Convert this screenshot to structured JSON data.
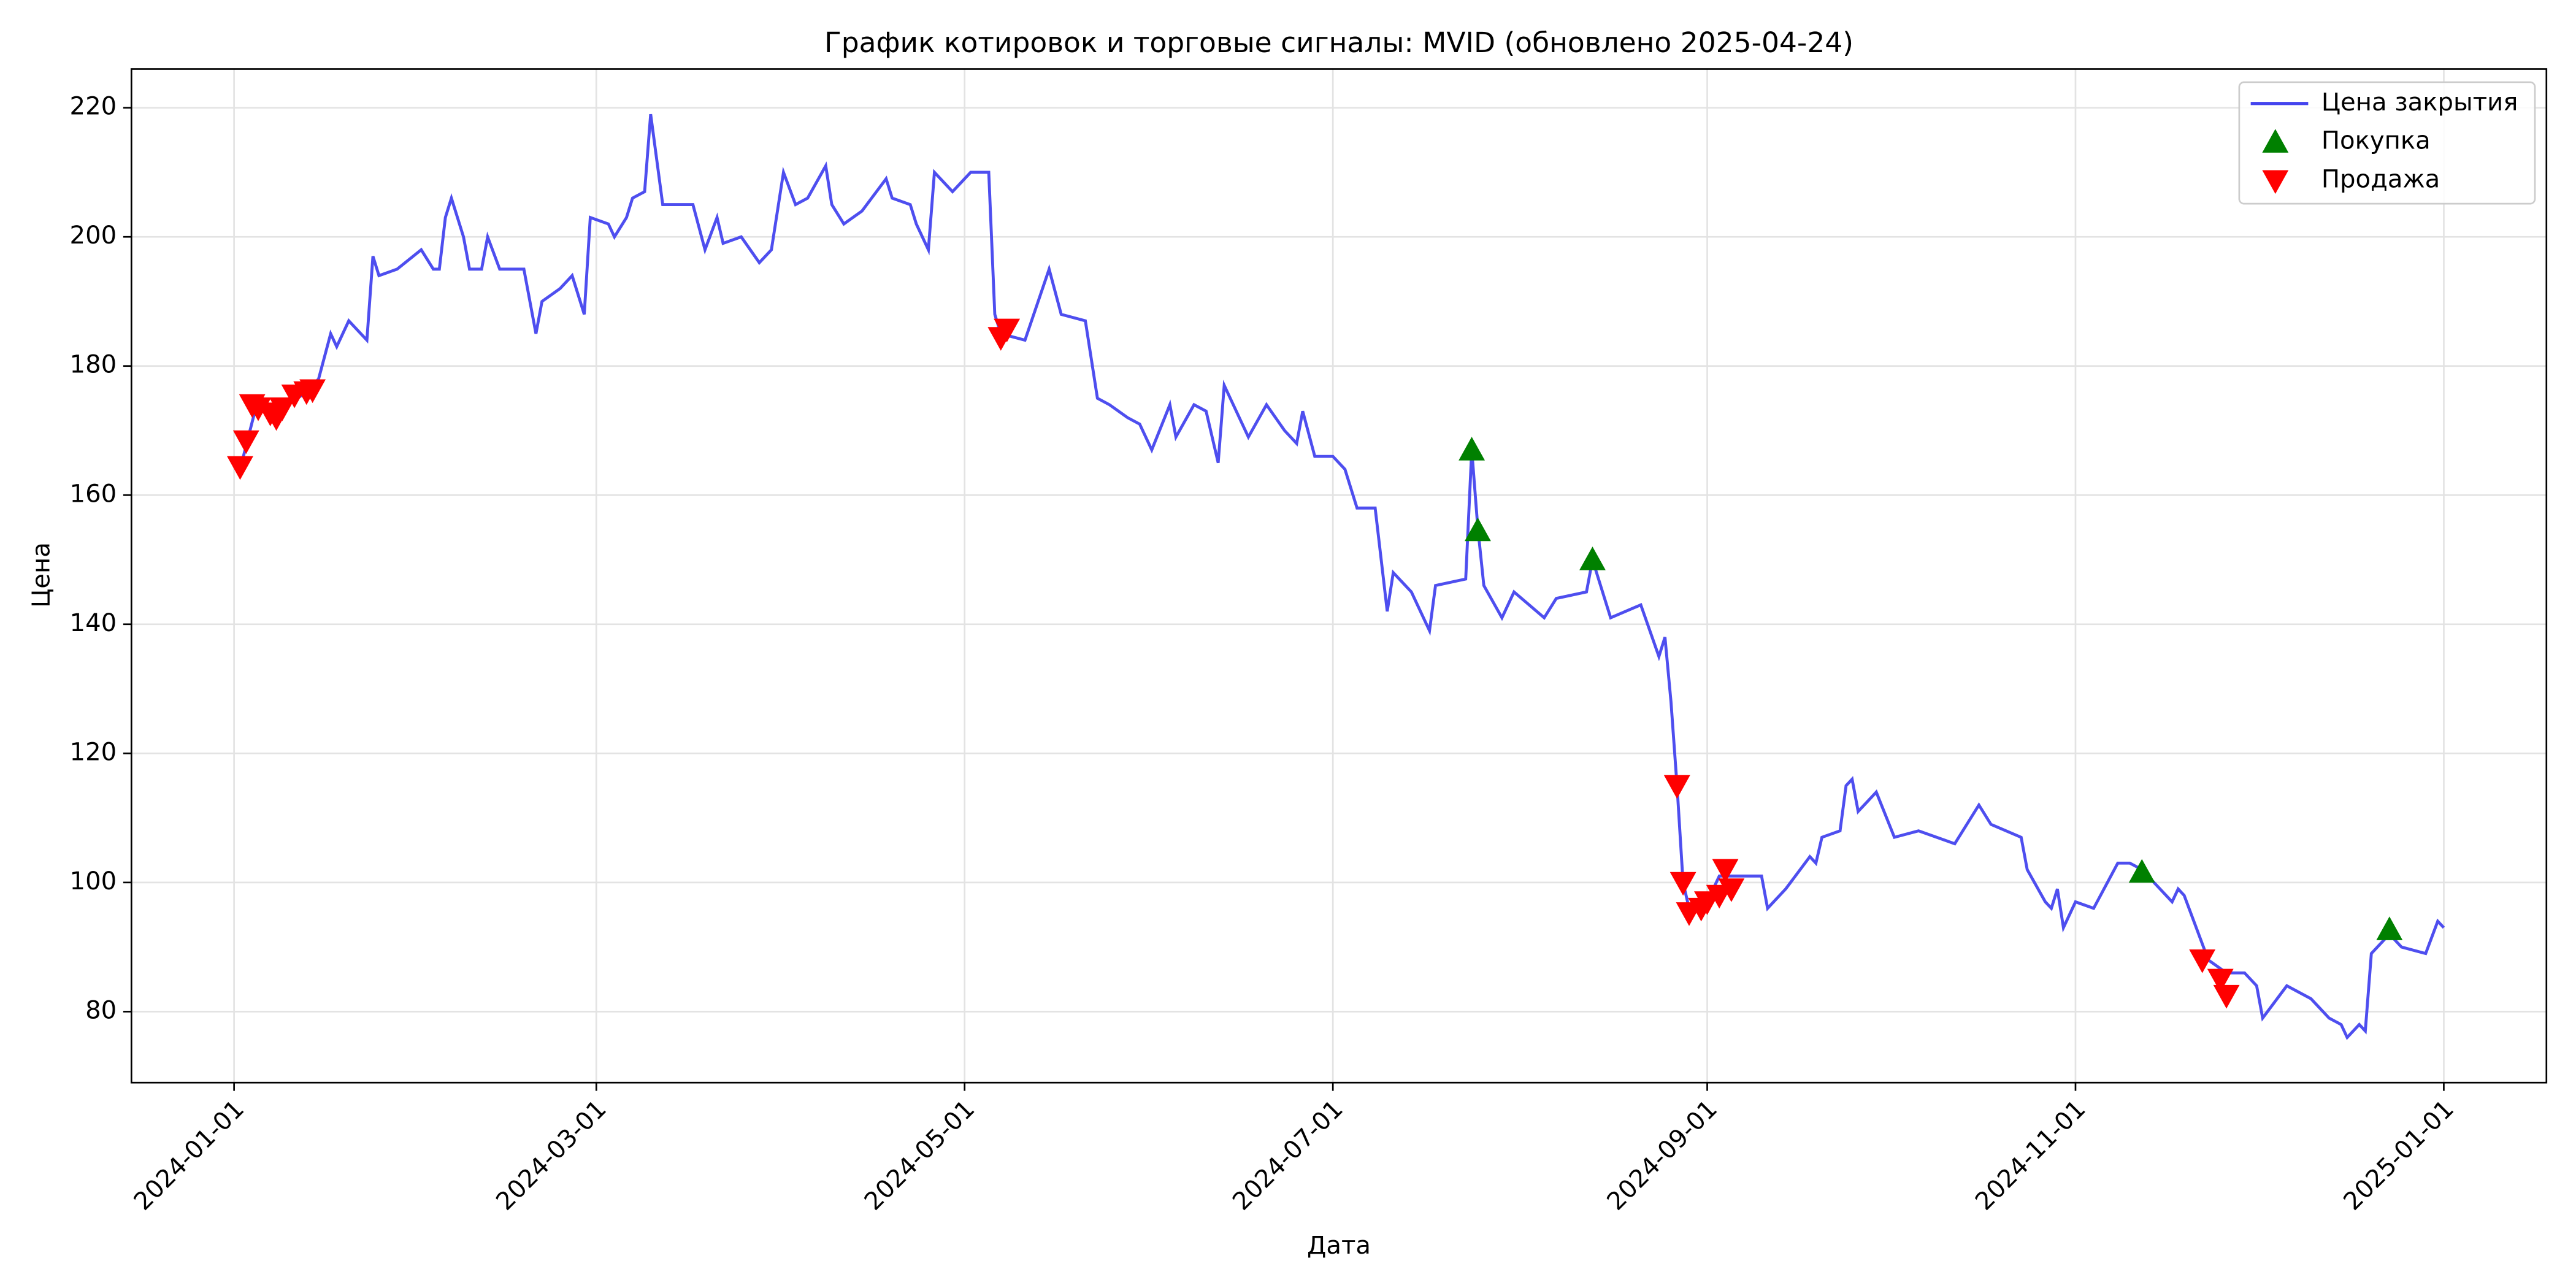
{
  "chart_data": {
    "type": "line",
    "title": "График котировок и торговые сигналы: MVID (обновлено 2025-04-24)",
    "xlabel": "Дата",
    "ylabel": "Цена",
    "xlim": [
      "2023-12-15",
      "2025-01-18"
    ],
    "xticks": [
      "2024-01-01",
      "2024-03-01",
      "2024-05-01",
      "2024-07-01",
      "2024-09-01",
      "2024-11-01",
      "2025-01-01"
    ],
    "ylim": [
      69,
      226
    ],
    "yticks": [
      80,
      100,
      120,
      140,
      160,
      180,
      200,
      220
    ],
    "grid": true,
    "legend": "upper right",
    "series": [
      {
        "name": "Цена закрытия",
        "color": "#4444ee",
        "kind": "line",
        "x": [
          "2024-01-02",
          "2024-01-05",
          "2024-01-07",
          "2024-01-10",
          "2024-01-13",
          "2024-01-15",
          "2024-01-17",
          "2024-01-18",
          "2024-01-20",
          "2024-01-23",
          "2024-01-24",
          "2024-01-25",
          "2024-01-28",
          "2024-02-01",
          "2024-02-03",
          "2024-02-04",
          "2024-02-05",
          "2024-02-06",
          "2024-02-08",
          "2024-02-09",
          "2024-02-11",
          "2024-02-12",
          "2024-02-14",
          "2024-02-18",
          "2024-02-20",
          "2024-02-21",
          "2024-02-24",
          "2024-02-26",
          "2024-02-28",
          "2024-02-29",
          "2024-03-03",
          "2024-03-04",
          "2024-03-06",
          "2024-03-07",
          "2024-03-09",
          "2024-03-10",
          "2024-03-12",
          "2024-03-17",
          "2024-03-19",
          "2024-03-21",
          "2024-03-22",
          "2024-03-25",
          "2024-03-28",
          "2024-03-30",
          "2024-04-01",
          "2024-04-03",
          "2024-04-05",
          "2024-04-08",
          "2024-04-09",
          "2024-04-11",
          "2024-04-14",
          "2024-04-18",
          "2024-04-19",
          "2024-04-22",
          "2024-04-23",
          "2024-04-25",
          "2024-04-26",
          "2024-04-29",
          "2024-05-02",
          "2024-05-05",
          "2024-05-06",
          "2024-05-07",
          "2024-05-11",
          "2024-05-15",
          "2024-05-17",
          "2024-05-21",
          "2024-05-23",
          "2024-05-25",
          "2024-05-28",
          "2024-05-30",
          "2024-06-01",
          "2024-06-04",
          "2024-06-05",
          "2024-06-08",
          "2024-06-10",
          "2024-06-12",
          "2024-06-13",
          "2024-06-17",
          "2024-06-20",
          "2024-06-23",
          "2024-06-25",
          "2024-06-26",
          "2024-06-28",
          "2024-07-01",
          "2024-07-03",
          "2024-07-05",
          "2024-07-08",
          "2024-07-10",
          "2024-07-11",
          "2024-07-14",
          "2024-07-17",
          "2024-07-18",
          "2024-07-23",
          "2024-07-24",
          "2024-07-25",
          "2024-07-26",
          "2024-07-29",
          "2024-07-31",
          "2024-08-05",
          "2024-08-07",
          "2024-08-12",
          "2024-08-13",
          "2024-08-16",
          "2024-08-21",
          "2024-08-24",
          "2024-08-25",
          "2024-08-26",
          "2024-08-27",
          "2024-08-28",
          "2024-08-29",
          "2024-09-01",
          "2024-09-03",
          "2024-09-10",
          "2024-09-11",
          "2024-09-14",
          "2024-09-18",
          "2024-09-19",
          "2024-09-20",
          "2024-09-23",
          "2024-09-24",
          "2024-09-25",
          "2024-09-26",
          "2024-09-29",
          "2024-10-02",
          "2024-10-06",
          "2024-10-12",
          "2024-10-16",
          "2024-10-18",
          "2024-10-23",
          "2024-10-24",
          "2024-10-27",
          "2024-10-28",
          "2024-10-29",
          "2024-10-30",
          "2024-11-01",
          "2024-11-04",
          "2024-11-08",
          "2024-11-10",
          "2024-11-12",
          "2024-11-14",
          "2024-11-17",
          "2024-11-18",
          "2024-11-19",
          "2024-11-23",
          "2024-11-26",
          "2024-11-29",
          "2024-12-01",
          "2024-12-02",
          "2024-12-06",
          "2024-12-10",
          "2024-12-13",
          "2024-12-15",
          "2024-12-16",
          "2024-12-18",
          "2024-12-19",
          "2024-12-20",
          "2024-12-23",
          "2024-12-25",
          "2024-12-29",
          "2024-12-31",
          "2025-01-01"
        ],
        "values": [
          164,
          175,
          172,
          174,
          176,
          178,
          185,
          183,
          187,
          184,
          197,
          194,
          195,
          198,
          195,
          195,
          203,
          206,
          200,
          195,
          195,
          200,
          195,
          195,
          185,
          190,
          192,
          194,
          188,
          203,
          202,
          200,
          203,
          206,
          207,
          219,
          205,
          205,
          198,
          203,
          199,
          200,
          196,
          198,
          210,
          205,
          206,
          211,
          205,
          202,
          204,
          209,
          206,
          205,
          202,
          198,
          210,
          207,
          210,
          210,
          188,
          185,
          184,
          195,
          188,
          187,
          175,
          174,
          172,
          171,
          167,
          174,
          169,
          174,
          173,
          165,
          177,
          169,
          174,
          170,
          168,
          173,
          166,
          166,
          164,
          158,
          158,
          142,
          148,
          145,
          139,
          146,
          147,
          167,
          155,
          146,
          141,
          145,
          141,
          144,
          145,
          150,
          141,
          143,
          135,
          138,
          128,
          115,
          100,
          96,
          97,
          101,
          101,
          96,
          99,
          104,
          103,
          107,
          108,
          115,
          116,
          111,
          114,
          107,
          108,
          106,
          112,
          109,
          107,
          102,
          97,
          96,
          99,
          93,
          97,
          96,
          103,
          103,
          102,
          100,
          97,
          99,
          98,
          88,
          86,
          86,
          84,
          79,
          84,
          82,
          79,
          78,
          76,
          78,
          77,
          89,
          92,
          90,
          89,
          94,
          93
        ]
      },
      {
        "name": "Покупка",
        "color": "#008000",
        "kind": "buy",
        "x": [
          "2024-07-24",
          "2024-07-25",
          "2024-08-13",
          "2024-11-12",
          "2024-12-23"
        ],
        "values": [
          167,
          154.5,
          150,
          101.6,
          92.7
        ]
      },
      {
        "name": "Продажа",
        "color": "#ff0000",
        "kind": "sell",
        "x": [
          "2024-01-02",
          "2024-01-03",
          "2024-01-04",
          "2024-01-05",
          "2024-01-07",
          "2024-01-08",
          "2024-01-09",
          "2024-01-11",
          "2024-01-13",
          "2024-01-14",
          "2024-05-07",
          "2024-05-08",
          "2024-08-27",
          "2024-08-28",
          "2024-08-29",
          "2024-08-31",
          "2024-09-01",
          "2024-09-03",
          "2024-09-04",
          "2024-09-05",
          "2024-11-22",
          "2024-11-25",
          "2024-11-26"
        ],
        "values": [
          164.4,
          168.4,
          174,
          173.5,
          172.7,
          172,
          173.5,
          175.5,
          176,
          176.3,
          184.4,
          185.7,
          115,
          100,
          95.3,
          96,
          97,
          98,
          102,
          99,
          88,
          85,
          82.5
        ]
      }
    ]
  }
}
